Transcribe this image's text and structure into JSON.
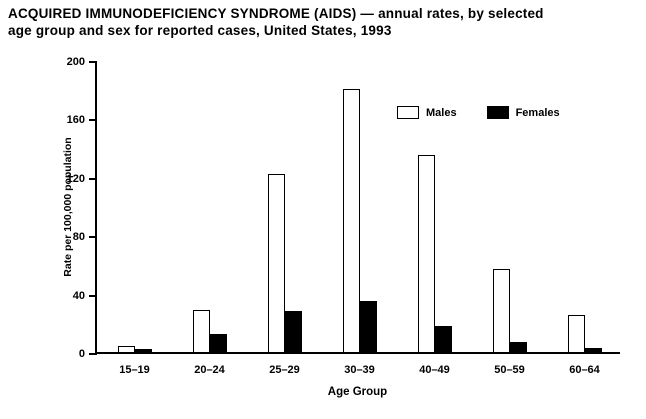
{
  "title": {
    "line1": "ACQUIRED IMMUNODEFICIENCY SYNDROME (AIDS) — annual rates, by selected",
    "line2": "age group and sex for reported cases, United States, 1993"
  },
  "chart_data": {
    "type": "bar",
    "categories": [
      "15–19",
      "20–24",
      "25–29",
      "30–39",
      "40–49",
      "50–59",
      "60–64"
    ],
    "series": [
      {
        "name": "Males",
        "color": "#ffffff",
        "values": [
          4,
          29,
          122,
          180,
          135,
          57,
          25
        ]
      },
      {
        "name": "Females",
        "color": "#000000",
        "values": [
          2,
          12,
          28,
          35,
          18,
          7,
          3
        ]
      }
    ],
    "title": "ACQUIRED IMMUNODEFICIENCY SYNDROME (AIDS) — annual rates, by selected age group and sex for reported cases, United States, 1993",
    "xlabel": "Age Group",
    "ylabel": "Rate per 100,000 population",
    "ylim": [
      0,
      200
    ],
    "yticks": [
      0,
      40,
      80,
      120,
      160,
      200
    ],
    "grid": false,
    "legend_position": "top-right-inside"
  }
}
